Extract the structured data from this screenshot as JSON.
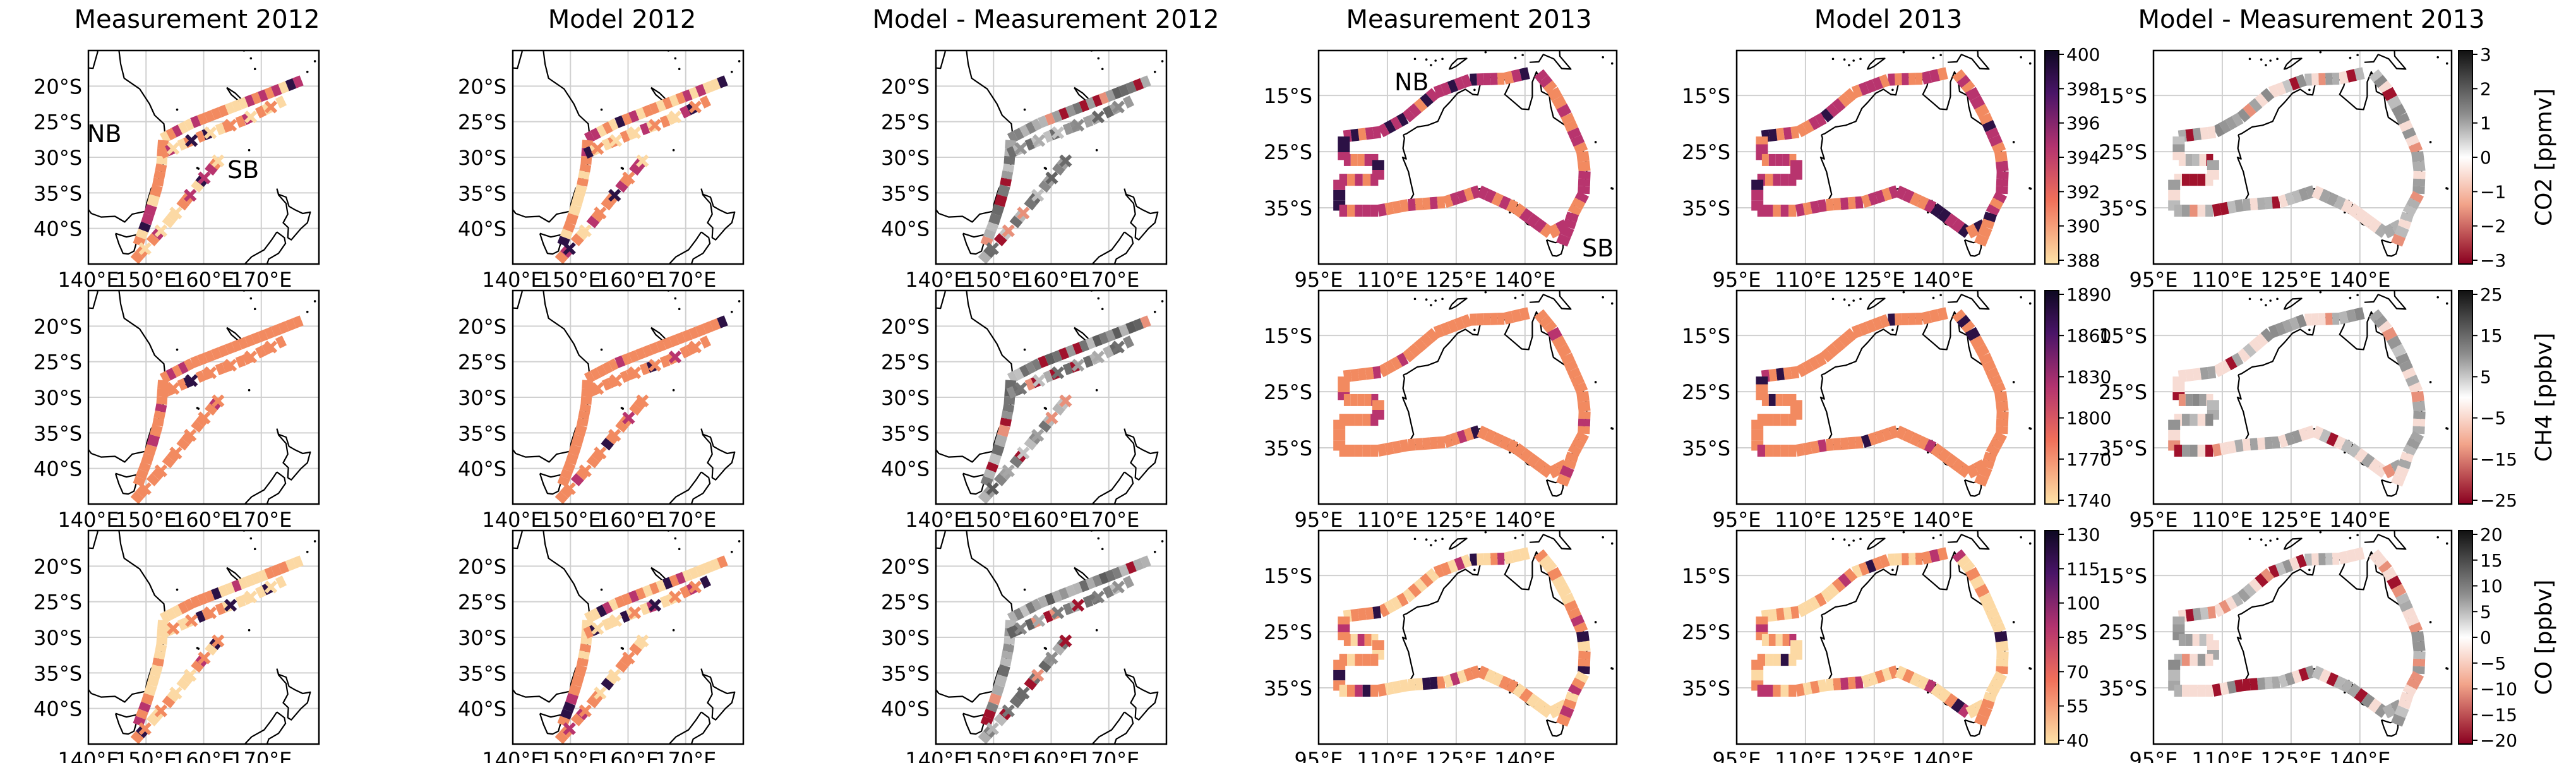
{
  "column_titles": [
    "Measurement 2012",
    "Model 2012",
    "Model - Measurement 2012",
    "Measurement 2013",
    "Model 2013",
    "Model - Measurement 2013"
  ],
  "region_labels": {
    "2012": {
      "nb": "NB",
      "sb": "SB"
    },
    "2013": {
      "nb": "NB",
      "sb": "SB"
    }
  },
  "axes": {
    "2012": {
      "lon_range": [
        140,
        180
      ],
      "lat_range": [
        -45,
        -15
      ],
      "lon_ticks": [
        140,
        150,
        160,
        170
      ],
      "lon_labels": [
        "140°E",
        "150°E",
        "160°E",
        "170°E"
      ],
      "lat_ticks": [
        -20,
        -25,
        -30,
        -35,
        -40
      ],
      "lat_labels": [
        "20°S",
        "25°S",
        "30°S",
        "35°S",
        "40°S"
      ]
    },
    "2013": {
      "lon_range": [
        95,
        160
      ],
      "lat_range": [
        -45,
        -7
      ],
      "lon_ticks": [
        95,
        110,
        125,
        140
      ],
      "lon_labels": [
        "95°E",
        "110°E",
        "125°E",
        "140°E"
      ],
      "lat_ticks": [
        -15,
        -25,
        -35
      ],
      "lat_labels": [
        "15°S",
        "25°S",
        "35°S"
      ]
    }
  },
  "colorbars": {
    "abs": [
      {
        "ticks": [
          "400",
          "398",
          "396",
          "394",
          "392",
          "390",
          "388"
        ]
      },
      {
        "ticks": [
          "1890",
          "1860",
          "1830",
          "1800",
          "1770",
          "1740"
        ]
      },
      {
        "ticks": [
          "130",
          "115",
          "100",
          "85",
          "70",
          "55",
          "40"
        ]
      }
    ],
    "diff": [
      {
        "ticks": [
          "3",
          "2",
          "1",
          "0",
          "−1",
          "−2",
          "−3"
        ],
        "label": "CO2 [ppmv]"
      },
      {
        "ticks": [
          "25",
          "15",
          "5",
          "−5",
          "−15",
          "−25"
        ],
        "label": "CH4 [ppbv]"
      },
      {
        "ticks": [
          "20",
          "15",
          "10",
          "5",
          "0",
          "−5",
          "−10",
          "−15",
          "−20"
        ],
        "label": "CO [ppbv]"
      }
    ]
  },
  "colors": {
    "track_low": "#fcd9a4",
    "track_mid": "#f28a60",
    "track_high": "#b8346e",
    "track_peak": "#2c1145",
    "diff_pos": "#444444",
    "diff_neg": "#a0122c",
    "coast": "#000000",
    "grid": "#d0d0d0"
  },
  "chart_data": {
    "type": "map",
    "rows": [
      "CO2",
      "CH4",
      "CO"
    ],
    "columns": [
      "Measurement 2012",
      "Model 2012",
      "Model - Measurement 2012",
      "Measurement 2013",
      "Model 2013",
      "Model - Measurement 2013"
    ],
    "voyage_2012": {
      "track": [
        [
          152.8,
          -27.4
        ],
        [
          158,
          -25.2
        ],
        [
          164,
          -23.3
        ],
        [
          172,
          -20.8
        ],
        [
          177,
          -19.2
        ]
      ],
      "parallel_track": [
        [
          152.6,
          -29.5
        ],
        [
          160,
          -26.9
        ],
        [
          167,
          -24.8
        ],
        [
          174,
          -22.0
        ]
      ],
      "coastal_track": [
        [
          153.0,
          -27.6
        ],
        [
          152.7,
          -31.0
        ],
        [
          152.0,
          -34.0
        ],
        [
          151.0,
          -36.8
        ],
        [
          150.0,
          -39.3
        ],
        [
          148.6,
          -42.3
        ]
      ],
      "sb_track": [
        [
          148.0,
          -44.5
        ],
        [
          153.5,
          -39.5
        ],
        [
          158.5,
          -34.5
        ],
        [
          162.5,
          -30.5
        ]
      ]
    },
    "voyage_2013": {
      "northern_track": [
        [
          140.8,
          -11.0
        ],
        [
          135.5,
          -12.0
        ],
        [
          128.0,
          -12.2
        ],
        [
          120.5,
          -14.5
        ],
        [
          114.0,
          -19.0
        ],
        [
          108.5,
          -21.5
        ],
        [
          100.5,
          -22.3
        ],
        [
          100.5,
          -26.5
        ],
        [
          108.0,
          -26.5
        ],
        [
          108.0,
          -30.0
        ],
        [
          99.5,
          -30.0
        ],
        [
          99.5,
          -35.5
        ],
        [
          108.0,
          -35.5
        ],
        [
          114.5,
          -34.5
        ],
        [
          122.5,
          -34.0
        ],
        [
          130.0,
          -32.0
        ],
        [
          138.0,
          -35.0
        ],
        [
          145.5,
          -39.5
        ],
        [
          149.0,
          -38.0
        ]
      ],
      "eastern_track": [
        [
          143.0,
          -11.0
        ],
        [
          146.0,
          -14.0
        ],
        [
          149.0,
          -18.5
        ],
        [
          152.5,
          -25.0
        ],
        [
          153.0,
          -28.5
        ],
        [
          152.8,
          -32.5
        ],
        [
          150.5,
          -36.0
        ],
        [
          149.5,
          -38.5
        ],
        [
          148.0,
          -41.5
        ]
      ]
    }
  }
}
